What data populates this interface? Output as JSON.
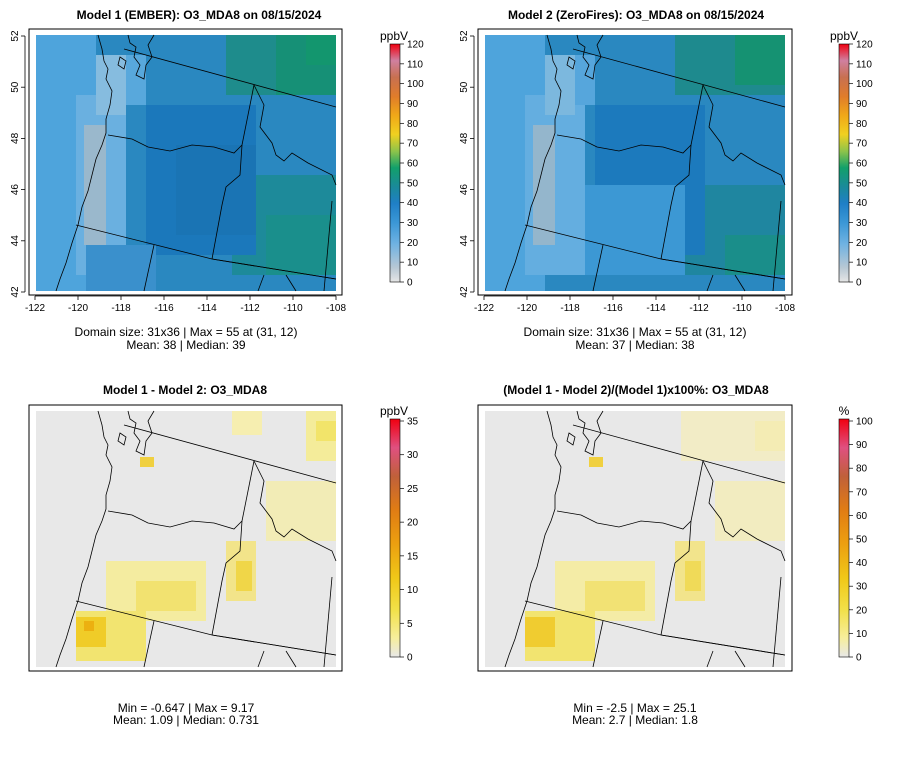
{
  "chart_data": [
    {
      "type": "heatmap",
      "title": "Model 1 (EMBER): O3_MDA8 on 08/15/2024",
      "unit": "ppbV",
      "colorbar_ticks": [
        "0",
        "10",
        "20",
        "30",
        "40",
        "50",
        "60",
        "70",
        "80",
        "90",
        "100",
        "110",
        "120"
      ],
      "colorbar_range": [
        0,
        120
      ],
      "x_ticks": [
        "-122",
        "-120",
        "-118",
        "-116",
        "-114",
        "-112",
        "-110",
        "-108"
      ],
      "y_ticks": [
        "42",
        "44",
        "46",
        "48",
        "50",
        "52"
      ],
      "xlim": [
        -122,
        -108
      ],
      "ylim": [
        42,
        52
      ],
      "grid": "31x36",
      "stats_line1": "Domain size: 31x36 | Max = 55 at (31, 12)",
      "stats_line2": "Mean: 38 |  Median: 39",
      "mean": 38,
      "median": 39,
      "max": 55
    },
    {
      "type": "heatmap",
      "title": "Model 2 (ZeroFires): O3_MDA8 on 08/15/2024",
      "unit": "ppbV",
      "colorbar_ticks": [
        "0",
        "10",
        "20",
        "30",
        "40",
        "50",
        "60",
        "70",
        "80",
        "90",
        "100",
        "110",
        "120"
      ],
      "colorbar_range": [
        0,
        120
      ],
      "x_ticks": [
        "-122",
        "-120",
        "-118",
        "-116",
        "-114",
        "-112",
        "-110",
        "-108"
      ],
      "y_ticks": [
        "42",
        "44",
        "46",
        "48",
        "50",
        "52"
      ],
      "xlim": [
        -122,
        -108
      ],
      "ylim": [
        42,
        52
      ],
      "grid": "31x36",
      "stats_line1": "Domain size: 31x36 | Max = 55 at (31, 12)",
      "stats_line2": "Mean: 37 |  Median: 38",
      "mean": 37,
      "median": 38,
      "max": 55
    },
    {
      "type": "heatmap",
      "title": "Model 1 - Model 2: O3_MDA8",
      "unit": "ppbV",
      "colorbar_ticks": [
        "0",
        "5",
        "10",
        "15",
        "20",
        "25",
        "30",
        "35"
      ],
      "colorbar_range": [
        0,
        35
      ],
      "stats_line1": "Min = -0.647 | Max = 9.17",
      "stats_line2": "Mean: 1.09 |  Median: 0.731",
      "min": -0.647,
      "max": 9.17,
      "mean": 1.09,
      "median": 0.731
    },
    {
      "type": "heatmap",
      "title": "(Model 1 - Model 2)/(Model 1)x100%: O3_MDA8",
      "unit": "%",
      "colorbar_ticks": [
        "0",
        "10",
        "20",
        "30",
        "40",
        "50",
        "60",
        "70",
        "80",
        "90",
        "100"
      ],
      "colorbar_range": [
        0,
        100
      ],
      "stats_line1": "Min = -2.5 | Max = 25.1",
      "stats_line2": "Mean: 2.7 |  Median: 1.8",
      "min": -2.5,
      "max": 25.1,
      "mean": 2.7,
      "median": 1.8
    }
  ],
  "colors": {
    "ozone_scale": [
      "#e6e6e6",
      "#8fbfe0",
      "#4aa2dc",
      "#1f7fc6",
      "#2487a0",
      "#12a06a",
      "#8fc44a",
      "#f0d020",
      "#f0a818",
      "#e07c2a",
      "#c06840",
      "#d080a0",
      "#f00010"
    ],
    "diff_scale": [
      "#e8e8e8",
      "#f6ee9c",
      "#f2e048",
      "#f0c818",
      "#ec9e10",
      "#e07c14",
      "#c0603a",
      "#e05080",
      "#f00010"
    ],
    "axes": "#000000"
  }
}
